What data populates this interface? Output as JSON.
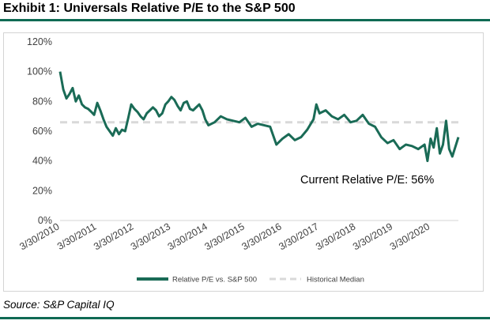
{
  "header": {
    "title": "Exhibit 1: Universals Relative P/E to the S&P 500"
  },
  "footer": {
    "source": "Source: S&P Capital IQ"
  },
  "colors": {
    "series": "#1a6b56",
    "median": "#d9d9d9",
    "rule": "#0f6a54",
    "axis": "#d4d4d4",
    "text": "#404040"
  },
  "chart_data": {
    "type": "line",
    "title": "",
    "xlabel": "",
    "ylabel": "",
    "ylim": [
      0,
      120
    ],
    "yticks": [
      "0%",
      "20%",
      "40%",
      "60%",
      "80%",
      "100%",
      "120%"
    ],
    "ytick_values": [
      0,
      20,
      40,
      60,
      80,
      100,
      120
    ],
    "grid": false,
    "legend_position": "bottom",
    "x_start": "3/30/2010",
    "x_end": "12/31/2020",
    "xticks": [
      "3/30/2010",
      "3/30/2011",
      "3/30/2012",
      "3/30/2013",
      "3/30/2014",
      "3/30/2015",
      "3/30/2016",
      "3/30/2017",
      "3/30/2018",
      "3/30/2019",
      "3/30/2020"
    ],
    "annotation": "Current Relative P/E: 56%",
    "series": [
      {
        "name": "Relative P/E vs. S&P 500",
        "style": "solid",
        "x": [
          "3/30/2010",
          "5/1/2010",
          "6/1/2010",
          "7/1/2010",
          "8/1/2010",
          "9/1/2010",
          "10/1/2010",
          "11/1/2010",
          "12/1/2010",
          "1/1/2011",
          "2/1/2011",
          "3/1/2011",
          "4/1/2011",
          "5/1/2011",
          "6/1/2011",
          "7/1/2011",
          "8/1/2011",
          "9/1/2011",
          "10/1/2011",
          "11/1/2011",
          "12/1/2011",
          "1/1/2012",
          "2/1/2012",
          "3/1/2012",
          "4/1/2012",
          "5/1/2012",
          "6/1/2012",
          "7/1/2012",
          "8/1/2012",
          "9/1/2012",
          "10/1/2012",
          "11/1/2012",
          "12/1/2012",
          "1/1/2013",
          "2/1/2013",
          "3/1/2013",
          "4/1/2013",
          "5/1/2013",
          "6/1/2013",
          "7/1/2013",
          "8/1/2013",
          "9/1/2013",
          "10/1/2013",
          "11/1/2013",
          "12/1/2013",
          "1/1/2014",
          "2/1/2014",
          "3/1/2014",
          "4/1/2014",
          "6/1/2014",
          "8/1/2014",
          "10/1/2014",
          "12/1/2014",
          "2/1/2015",
          "4/1/2015",
          "6/1/2015",
          "8/1/2015",
          "10/1/2015",
          "12/1/2015",
          "2/1/2016",
          "4/1/2016",
          "6/1/2016",
          "8/1/2016",
          "10/1/2016",
          "12/1/2016",
          "2/1/2017",
          "3/1/2017",
          "4/1/2017",
          "6/1/2017",
          "8/1/2017",
          "10/1/2017",
          "12/1/2017",
          "2/1/2018",
          "4/1/2018",
          "6/1/2018",
          "8/1/2018",
          "10/1/2018",
          "12/1/2018",
          "2/1/2019",
          "4/1/2019",
          "6/1/2019",
          "8/1/2019",
          "10/1/2019",
          "12/1/2019",
          "2/1/2020",
          "3/1/2020",
          "4/1/2020",
          "5/1/2020",
          "6/1/2020",
          "7/1/2020",
          "8/1/2020",
          "9/1/2020",
          "10/1/2020",
          "11/1/2020",
          "12/31/2020"
        ],
        "values": [
          100,
          88,
          82,
          85,
          89,
          80,
          84,
          78,
          76,
          75,
          73,
          71,
          79,
          74,
          68,
          63,
          60,
          57,
          62,
          58,
          61,
          60,
          69,
          78,
          75,
          73,
          70,
          68,
          72,
          74,
          76,
          74,
          70,
          72,
          78,
          80,
          83,
          81,
          77,
          74,
          79,
          80,
          75,
          74,
          76,
          78,
          74,
          68,
          64,
          66,
          70,
          68,
          67,
          66,
          69,
          63,
          65,
          64,
          63,
          51,
          55,
          58,
          54,
          56,
          61,
          68,
          78,
          72,
          74,
          70,
          68,
          71,
          66,
          67,
          71,
          65,
          63,
          56,
          52,
          54,
          48,
          51,
          50,
          48,
          51,
          40,
          55,
          49,
          62,
          45,
          51,
          67,
          48,
          43,
          56
        ]
      },
      {
        "name": "Historical Median",
        "style": "dashed",
        "x": [
          "3/30/2010",
          "12/31/2020"
        ],
        "values": [
          66,
          66
        ]
      }
    ]
  }
}
